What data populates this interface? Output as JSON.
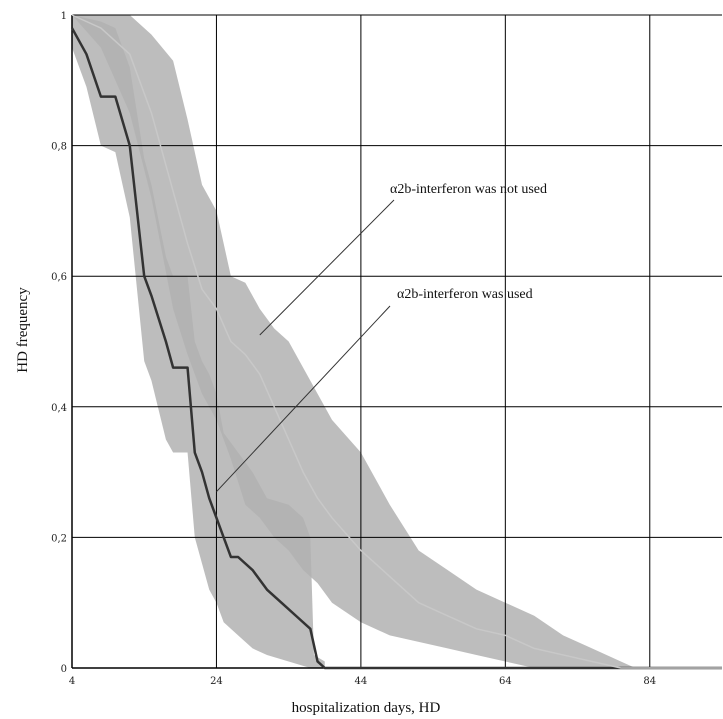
{
  "chart_data": {
    "type": "line",
    "title": "",
    "xlabel": "hospitalization days, HD",
    "ylabel": "HD frequency",
    "xlim": [
      4,
      94
    ],
    "ylim": [
      0,
      1
    ],
    "grid": true,
    "x_ticks": [
      "4",
      "24",
      "44",
      "64",
      "84"
    ],
    "y_ticks": [
      "0",
      "0,2",
      "0,4",
      "0,6",
      "0,8",
      "1"
    ],
    "colors": {
      "used_line": "#333333",
      "not_used_line": "#c8c8c8",
      "band": "#b2b2b2",
      "grid": "#000000"
    },
    "series": [
      {
        "name": "α2b-interferon was used",
        "points": [
          [
            4,
            0.98
          ],
          [
            6,
            0.94
          ],
          [
            8,
            0.875
          ],
          [
            10,
            0.875
          ],
          [
            12,
            0.8
          ],
          [
            14,
            0.6
          ],
          [
            15,
            0.57
          ],
          [
            17,
            0.5
          ],
          [
            18,
            0.46
          ],
          [
            20,
            0.46
          ],
          [
            21,
            0.33
          ],
          [
            22,
            0.3
          ],
          [
            23,
            0.26
          ],
          [
            24,
            0.23
          ],
          [
            25,
            0.2
          ],
          [
            26,
            0.17
          ],
          [
            27,
            0.17
          ],
          [
            29,
            0.15
          ],
          [
            31,
            0.12
          ],
          [
            33,
            0.1
          ],
          [
            35,
            0.08
          ],
          [
            37,
            0.06
          ],
          [
            38,
            0.01
          ],
          [
            39,
            0
          ],
          [
            94,
            0
          ]
        ],
        "band_upper": [
          [
            4,
            1
          ],
          [
            8,
            0.99
          ],
          [
            10,
            0.98
          ],
          [
            12,
            0.92
          ],
          [
            14,
            0.78
          ],
          [
            15,
            0.74
          ],
          [
            17,
            0.63
          ],
          [
            18,
            0.6
          ],
          [
            20,
            0.6
          ],
          [
            21,
            0.5
          ],
          [
            22,
            0.47
          ],
          [
            23,
            0.45
          ],
          [
            24,
            0.42
          ],
          [
            25,
            0.36
          ],
          [
            27,
            0.33
          ],
          [
            29,
            0.3
          ],
          [
            31,
            0.26
          ],
          [
            34,
            0.25
          ],
          [
            36,
            0.23
          ],
          [
            37,
            0.2
          ],
          [
            37.5,
            0.02
          ],
          [
            39,
            0.01
          ]
        ],
        "band_lower": [
          [
            4,
            0.95
          ],
          [
            6,
            0.89
          ],
          [
            8,
            0.8
          ],
          [
            10,
            0.79
          ],
          [
            12,
            0.69
          ],
          [
            14,
            0.47
          ],
          [
            15,
            0.44
          ],
          [
            17,
            0.35
          ],
          [
            18,
            0.33
          ],
          [
            20,
            0.33
          ],
          [
            21,
            0.2
          ],
          [
            22,
            0.16
          ],
          [
            23,
            0.12
          ],
          [
            24,
            0.1
          ],
          [
            25,
            0.07
          ],
          [
            27,
            0.05
          ],
          [
            29,
            0.03
          ],
          [
            31,
            0.02
          ],
          [
            34,
            0.01
          ],
          [
            37,
            0
          ],
          [
            39,
            0
          ]
        ]
      },
      {
        "name": "α2b-interferon was not used",
        "points": [
          [
            4,
            1
          ],
          [
            8,
            0.98
          ],
          [
            12,
            0.94
          ],
          [
            15,
            0.85
          ],
          [
            18,
            0.73
          ],
          [
            20,
            0.65
          ],
          [
            22,
            0.58
          ],
          [
            24,
            0.55
          ],
          [
            26,
            0.5
          ],
          [
            28,
            0.48
          ],
          [
            30,
            0.45
          ],
          [
            32,
            0.4
          ],
          [
            34,
            0.35
          ],
          [
            36,
            0.3
          ],
          [
            38,
            0.26
          ],
          [
            40,
            0.23
          ],
          [
            44,
            0.18
          ],
          [
            48,
            0.14
          ],
          [
            52,
            0.1
          ],
          [
            56,
            0.08
          ],
          [
            60,
            0.06
          ],
          [
            64,
            0.05
          ],
          [
            68,
            0.03
          ],
          [
            72,
            0.02
          ],
          [
            76,
            0.01
          ],
          [
            80,
            0
          ],
          [
            94,
            0
          ]
        ],
        "band_upper": [
          [
            4,
            1
          ],
          [
            8,
            1
          ],
          [
            12,
            1
          ],
          [
            15,
            0.97
          ],
          [
            18,
            0.93
          ],
          [
            20,
            0.84
          ],
          [
            22,
            0.74
          ],
          [
            24,
            0.7
          ],
          [
            26,
            0.6
          ],
          [
            28,
            0.59
          ],
          [
            30,
            0.55
          ],
          [
            32,
            0.52
          ],
          [
            34,
            0.5
          ],
          [
            36,
            0.46
          ],
          [
            38,
            0.42
          ],
          [
            40,
            0.38
          ],
          [
            44,
            0.33
          ],
          [
            48,
            0.25
          ],
          [
            52,
            0.18
          ],
          [
            56,
            0.15
          ],
          [
            60,
            0.12
          ],
          [
            64,
            0.1
          ],
          [
            68,
            0.08
          ],
          [
            72,
            0.05
          ],
          [
            76,
            0.03
          ],
          [
            80,
            0.01
          ],
          [
            82,
            0
          ]
        ],
        "band_lower": [
          [
            4,
            1
          ],
          [
            8,
            0.95
          ],
          [
            12,
            0.85
          ],
          [
            15,
            0.72
          ],
          [
            18,
            0.55
          ],
          [
            20,
            0.48
          ],
          [
            22,
            0.42
          ],
          [
            24,
            0.38
          ],
          [
            26,
            0.32
          ],
          [
            28,
            0.25
          ],
          [
            30,
            0.23
          ],
          [
            32,
            0.2
          ],
          [
            34,
            0.18
          ],
          [
            36,
            0.15
          ],
          [
            38,
            0.13
          ],
          [
            40,
            0.1
          ],
          [
            44,
            0.07
          ],
          [
            48,
            0.05
          ],
          [
            52,
            0.04
          ],
          [
            56,
            0.03
          ],
          [
            60,
            0.02
          ],
          [
            64,
            0.01
          ],
          [
            68,
            0
          ],
          [
            82,
            0
          ]
        ]
      }
    ],
    "annotations": [
      {
        "text": "α2b-interferon was not used",
        "target": [
          30,
          0.51
        ]
      },
      {
        "text": "α2b-interferon was used",
        "target": [
          24,
          0.27
        ]
      }
    ]
  }
}
